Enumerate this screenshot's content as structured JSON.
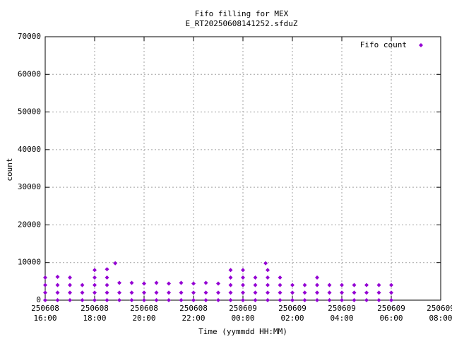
{
  "chart_data": {
    "type": "scatter",
    "title": "Fifo filling for MEX",
    "subtitle": "E_RT20250608141252.sfduZ",
    "x_label": "Time (yymmdd HH:MM)",
    "y_label": "count",
    "xlim": [
      "250608 16:00",
      "250609 08:00"
    ],
    "xticks": [
      "250608 16:00",
      "250608 18:00",
      "250608 20:00",
      "250608 22:00",
      "250609 00:00",
      "250609 02:00",
      "250609 04:00",
      "250609 06:00",
      "250609 08:00"
    ],
    "ylim": [
      0,
      70000
    ],
    "yticks": [
      0,
      10000,
      20000,
      30000,
      40000,
      50000,
      60000,
      70000
    ],
    "grid": true,
    "legend": "top right",
    "x": [
      "250608 16:00",
      "250608 16:00",
      "250608 16:00",
      "250608 16:00",
      "250608 16:30",
      "250608 16:30",
      "250608 16:30",
      "250608 16:30",
      "250608 17:00",
      "250608 17:00",
      "250608 17:00",
      "250608 17:00",
      "250608 17:30",
      "250608 17:30",
      "250608 17:30",
      "250608 18:00",
      "250608 18:00",
      "250608 18:00",
      "250608 18:00",
      "250608 18:00",
      "250608 18:30",
      "250608 18:30",
      "250608 18:30",
      "250608 18:30",
      "250608 18:30",
      "250608 18:50",
      "250608 19:00",
      "250608 19:00",
      "250608 19:00",
      "250608 19:30",
      "250608 19:30",
      "250608 19:30",
      "250608 20:00",
      "250608 20:00",
      "250608 20:00",
      "250608 20:30",
      "250608 20:30",
      "250608 20:30",
      "250608 21:00",
      "250608 21:00",
      "250608 21:00",
      "250608 21:30",
      "250608 21:30",
      "250608 21:30",
      "250608 22:00",
      "250608 22:00",
      "250608 22:00",
      "250608 22:30",
      "250608 22:30",
      "250608 22:30",
      "250608 23:00",
      "250608 23:00",
      "250608 23:00",
      "250608 23:30",
      "250608 23:30",
      "250608 23:30",
      "250608 23:30",
      "250608 23:30",
      "250609 00:00",
      "250609 00:00",
      "250609 00:00",
      "250609 00:00",
      "250609 00:00",
      "250609 00:30",
      "250609 00:30",
      "250609 00:30",
      "250609 00:30",
      "250609 00:55",
      "250609 01:00",
      "250609 01:00",
      "250609 01:00",
      "250609 01:00",
      "250609 01:00",
      "250609 01:30",
      "250609 01:30",
      "250609 01:30",
      "250609 01:30",
      "250609 02:00",
      "250609 02:00",
      "250609 02:00",
      "250609 02:30",
      "250609 02:30",
      "250609 02:30",
      "250609 03:00",
      "250609 03:00",
      "250609 03:00",
      "250609 03:00",
      "250609 03:30",
      "250609 03:30",
      "250609 03:30",
      "250609 04:00",
      "250609 04:00",
      "250609 04:00",
      "250609 04:30",
      "250609 04:30",
      "250609 04:30",
      "250609 05:00",
      "250609 05:00",
      "250609 05:00",
      "250609 05:30",
      "250609 05:30",
      "250609 05:30",
      "250609 06:00",
      "250609 06:00",
      "250609 06:00"
    ],
    "series": [
      {
        "name": "Fifo count",
        "color": "#9400d3",
        "values": [
          0,
          2000,
          4000,
          6000,
          0,
          2000,
          4000,
          6200,
          0,
          2000,
          4000,
          6000,
          0,
          2000,
          4000,
          0,
          2000,
          4000,
          6000,
          8000,
          0,
          2000,
          4000,
          6000,
          8200,
          9800,
          0,
          2000,
          4600,
          0,
          2000,
          4600,
          0,
          2000,
          4400,
          0,
          2000,
          4600,
          0,
          2000,
          4400,
          0,
          2000,
          4600,
          0,
          2000,
          4400,
          0,
          2000,
          4600,
          0,
          2000,
          4400,
          0,
          2000,
          4000,
          6000,
          8000,
          0,
          2000,
          4000,
          6000,
          8000,
          0,
          2000,
          4000,
          6000,
          9800,
          0,
          2000,
          4000,
          6000,
          8000,
          0,
          2000,
          4000,
          6000,
          0,
          2000,
          4000,
          0,
          2000,
          4000,
          0,
          2000,
          4000,
          6000,
          0,
          2000,
          4000,
          0,
          2000,
          4000,
          0,
          2000,
          4000,
          0,
          2000,
          4000,
          0,
          2000,
          4000,
          0,
          2000,
          4000
        ]
      }
    ]
  }
}
